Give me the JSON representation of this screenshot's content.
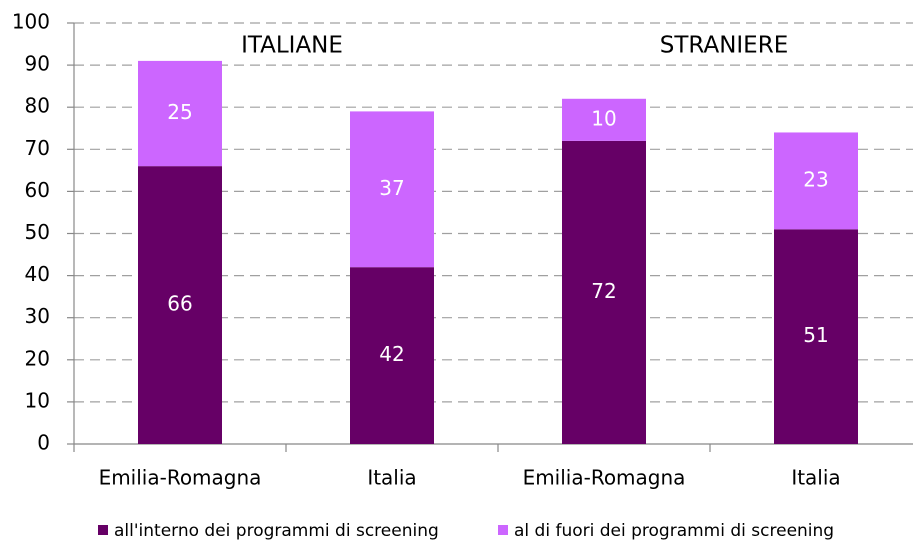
{
  "chart_data": {
    "type": "stacked_bar",
    "categories": [
      "Emilia-Romagna",
      "Italia",
      "Emilia-Romagna",
      "Italia"
    ],
    "series": [
      {
        "name": "all'interno dei programmi di screening",
        "color": "#660066",
        "values": [
          66,
          42,
          72,
          51
        ]
      },
      {
        "name": "al di fuori dei programmi di screening",
        "color": "#cc66ff",
        "values": [
          25,
          37,
          10,
          23
        ]
      }
    ],
    "annotations": [
      "ITALIANE",
      "STRANIERE"
    ],
    "ylim": [
      0,
      100
    ],
    "yticks": [
      0,
      10,
      20,
      30,
      40,
      50,
      60,
      70,
      80,
      90,
      100
    ],
    "grid": true,
    "legend": "bottom"
  }
}
